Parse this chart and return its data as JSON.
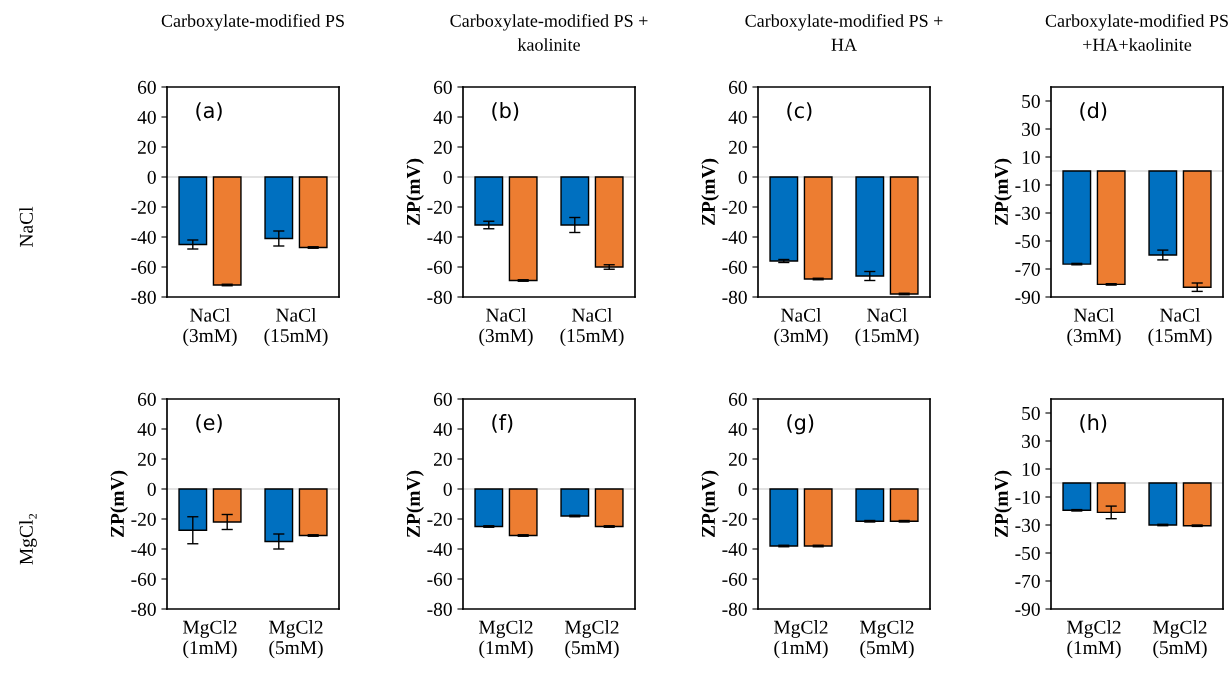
{
  "chart_data": [
    {
      "type": "bar",
      "title": "Carboxylate-modified PS",
      "ylabel": null,
      "annotations": [
        "(a)",
        "NaCl"
      ],
      "categories": [
        "NaCl\n(3mM)",
        "NaCl\n(15mM)"
      ],
      "ylim": [
        -80,
        60
      ],
      "yticks": [
        -80,
        -60,
        -40,
        -20,
        0,
        20,
        40,
        60
      ],
      "ref_lines": [
        {
          "axis": "y",
          "value": 0,
          "color": "#d9d9d9"
        }
      ],
      "series": [
        {
          "color": "#0070c0",
          "values": [
            -45,
            -41
          ],
          "errors": [
            3,
            5
          ]
        },
        {
          "color": "#ed7d31",
          "values": [
            -72,
            -47
          ],
          "errors": [
            0.5,
            0.5
          ]
        }
      ]
    },
    {
      "type": "bar",
      "title": "Carboxylate-modified PS +\nkaolinite",
      "ylabel": "ZP(mV)",
      "annotations": [
        "(b)"
      ],
      "categories": [
        "NaCl\n(3mM)",
        "NaCl\n(15mM)"
      ],
      "ylim": [
        -80,
        60
      ],
      "yticks": [
        -80,
        -60,
        -40,
        -20,
        0,
        20,
        40,
        60
      ],
      "ref_lines": [
        {
          "axis": "y",
          "value": 0,
          "color": "#d9d9d9"
        }
      ],
      "series": [
        {
          "color": "#0070c0",
          "values": [
            -32,
            -32
          ],
          "errors": [
            2.5,
            5
          ]
        },
        {
          "color": "#ed7d31",
          "values": [
            -69,
            -60
          ],
          "errors": [
            0.5,
            1.5
          ]
        }
      ]
    },
    {
      "type": "bar",
      "title": "Carboxylate-modified PS +\nHA",
      "ylabel": "ZP(mV)",
      "annotations": [
        "(c)"
      ],
      "categories": [
        "NaCl\n(3mM)",
        "NaCl\n(15mM)"
      ],
      "ylim": [
        -80,
        60
      ],
      "yticks": [
        -80,
        -60,
        -40,
        -20,
        0,
        20,
        40,
        60
      ],
      "ref_lines": [
        {
          "axis": "y",
          "value": 0,
          "color": "#d9d9d9"
        }
      ],
      "series": [
        {
          "color": "#0070c0",
          "values": [
            -56,
            -66
          ],
          "errors": [
            1,
            3
          ]
        },
        {
          "color": "#ed7d31",
          "values": [
            -68,
            -78
          ],
          "errors": [
            0.5,
            0.5
          ]
        }
      ]
    },
    {
      "type": "bar",
      "title": "Carboxylate-modified PS\n+HA+kaolinite",
      "ylabel": "ZP(mV)",
      "annotations": [
        "(d)"
      ],
      "categories": [
        "NaCl\n(3mM)",
        "NaCl\n(15mM)"
      ],
      "ylim": [
        -90,
        60
      ],
      "yticks": [
        -90,
        -70,
        -50,
        -30,
        -10,
        10,
        30,
        50
      ],
      "ref_lines": [
        {
          "axis": "y",
          "value": 0,
          "color": "#d9d9d9"
        }
      ],
      "series": [
        {
          "color": "#0070c0",
          "values": [
            -66.5,
            -60
          ],
          "errors": [
            0.5,
            3.5
          ]
        },
        {
          "color": "#ed7d31",
          "values": [
            -81,
            -83
          ],
          "errors": [
            0.5,
            3
          ]
        }
      ]
    },
    {
      "type": "bar",
      "ylabel": "ZP(mV)",
      "annotations": [
        "(e)",
        "MgCl₂"
      ],
      "categories": [
        "MgCl2\n(1mM)",
        "MgCl2\n(5mM)"
      ],
      "ylim": [
        -80,
        60
      ],
      "yticks": [
        -80,
        -60,
        -40,
        -20,
        0,
        20,
        40,
        60
      ],
      "ref_lines": [
        {
          "axis": "y",
          "value": 0,
          "color": "#d9d9d9"
        }
      ],
      "series": [
        {
          "color": "#0070c0",
          "values": [
            -27.5,
            -35
          ],
          "errors": [
            9,
            5
          ]
        },
        {
          "color": "#ed7d31",
          "values": [
            -22,
            -31
          ],
          "errors": [
            5,
            0.5
          ]
        }
      ]
    },
    {
      "type": "bar",
      "ylabel": "ZP(mV)",
      "annotations": [
        "(f)"
      ],
      "categories": [
        "MgCl2\n(1mM)",
        "MgCl2\n(5mM)"
      ],
      "ylim": [
        -80,
        60
      ],
      "yticks": [
        -80,
        -60,
        -40,
        -20,
        0,
        20,
        40,
        60
      ],
      "ref_lines": [
        {
          "axis": "y",
          "value": 0,
          "color": "#d9d9d9"
        }
      ],
      "series": [
        {
          "color": "#0070c0",
          "values": [
            -25,
            -18
          ],
          "errors": [
            0.5,
            0.5
          ]
        },
        {
          "color": "#ed7d31",
          "values": [
            -31,
            -25
          ],
          "errors": [
            0.5,
            0.5
          ]
        }
      ]
    },
    {
      "type": "bar",
      "ylabel": "ZP(mV)",
      "annotations": [
        "(g)"
      ],
      "categories": [
        "MgCl2\n(1mM)",
        "MgCl2\n(5mM)"
      ],
      "ylim": [
        -80,
        60
      ],
      "yticks": [
        -80,
        -60,
        -40,
        -20,
        0,
        20,
        40,
        60
      ],
      "ref_lines": [
        {
          "axis": "y",
          "value": 0,
          "color": "#d9d9d9"
        }
      ],
      "series": [
        {
          "color": "#0070c0",
          "values": [
            -38,
            -21.5
          ],
          "errors": [
            0.5,
            0.5
          ]
        },
        {
          "color": "#ed7d31",
          "values": [
            -38,
            -21.5
          ],
          "errors": [
            0.5,
            0.5
          ]
        }
      ]
    },
    {
      "type": "bar",
      "ylabel": "ZP(mV)",
      "annotations": [
        "(h)"
      ],
      "categories": [
        "MgCl2\n(1mM)",
        "MgCl2\n(5mM)"
      ],
      "ylim": [
        -90,
        60
      ],
      "yticks": [
        -90,
        -70,
        -50,
        -30,
        -10,
        10,
        30,
        50
      ],
      "ref_lines": [
        {
          "axis": "y",
          "value": 0,
          "color": "#d9d9d9"
        }
      ],
      "series": [
        {
          "color": "#0070c0",
          "values": [
            -19.5,
            -30
          ],
          "errors": [
            0.5,
            0.5
          ]
        },
        {
          "color": "#ed7d31",
          "values": [
            -21,
            -30.5
          ],
          "errors": [
            4.5,
            0.5
          ]
        }
      ]
    }
  ]
}
